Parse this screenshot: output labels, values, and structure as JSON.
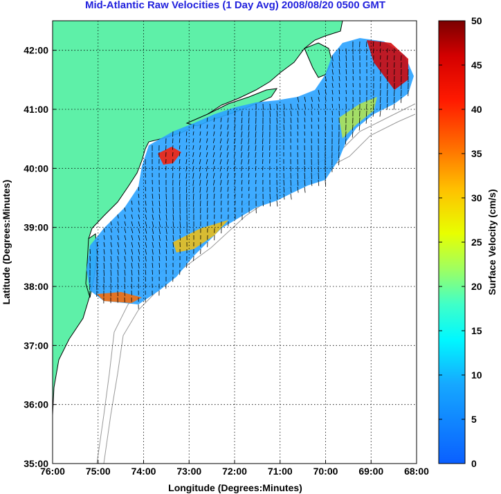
{
  "title": "Mid-Atlantic Raw Velocities (1 Day Avg) 2008/08/20 0500 GMT",
  "x_axis": {
    "label": "Longitude (Degrees:Minutes)",
    "ticks": [
      "76:00",
      "75:00",
      "74:00",
      "73:00",
      "72:00",
      "71:00",
      "70:00",
      "69:00",
      "68:00"
    ]
  },
  "y_axis": {
    "label": "Latitude (Degrees:Minutes)",
    "ticks": [
      "35:00",
      "36:00",
      "37:00",
      "38:00",
      "39:00",
      "40:00",
      "41:00",
      "42:00"
    ]
  },
  "colorbar": {
    "label": "Surface Velocity (cm/s)",
    "ticks": [
      "0",
      "5",
      "10",
      "15",
      "20",
      "25",
      "30",
      "35",
      "40",
      "45",
      "50"
    ],
    "range": [
      0,
      50
    ]
  },
  "map": {
    "lon_range": [
      -76,
      -68
    ],
    "lat_range": [
      35,
      42.5
    ],
    "grid": "dotted",
    "land_color": "#5ef0a8",
    "background_color": "#ffffff"
  }
}
